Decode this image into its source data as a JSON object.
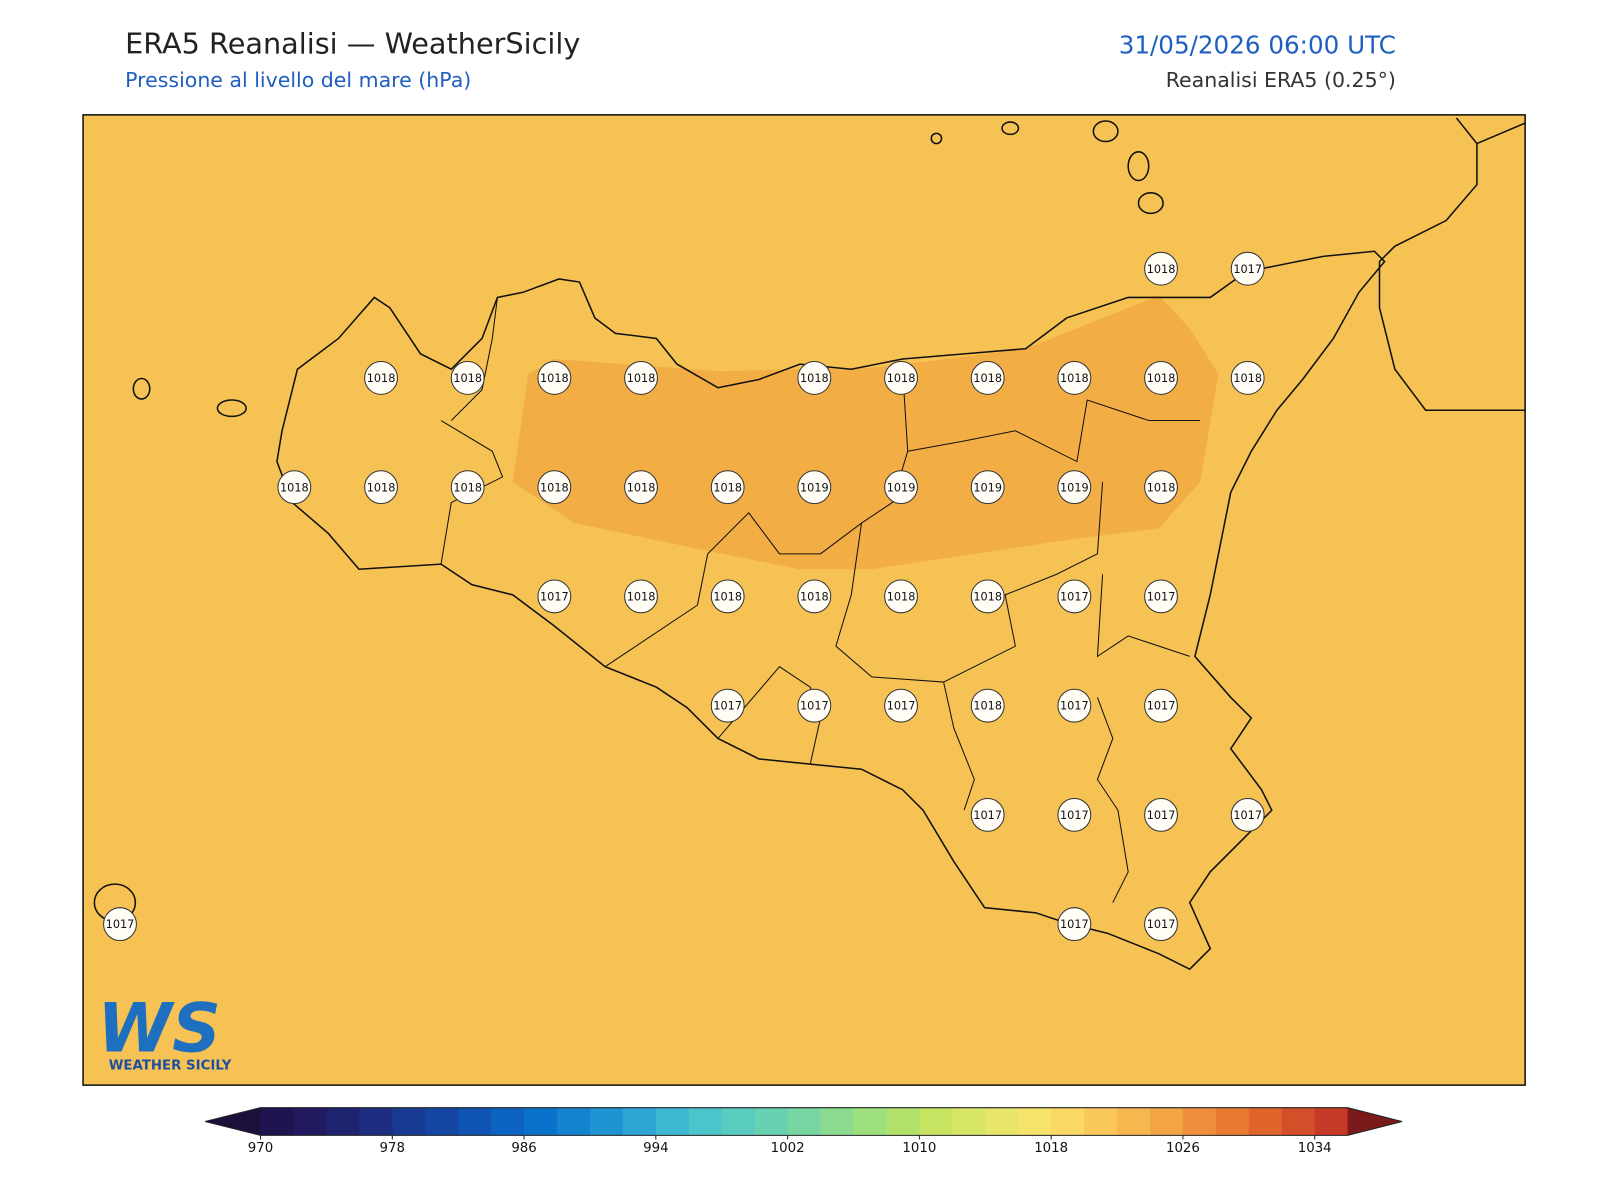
{
  "header": {
    "title": "ERA5 Reanalisi — WeatherSicily",
    "subtitle": "Pressione al livello del mare (hPa)",
    "datetime": "31/05/2026 06:00 UTC",
    "source": "Reanalisi ERA5 (0.25°)"
  },
  "map": {
    "background_color": "#f6c253",
    "high_zone_color": "#f2ae45",
    "stations": [
      1018,
      1017,
      1018,
      1018,
      1018,
      1018,
      1018,
      1018,
      1018,
      1018,
      1018,
      1018,
      1018,
      1018,
      1018,
      1018,
      1018,
      1018,
      1019,
      1019,
      1019,
      1019,
      1018,
      1017,
      1018,
      1018,
      1018,
      1018,
      1018,
      1017,
      1017,
      1017,
      1017,
      1017,
      1018,
      1017,
      1017,
      1017,
      1017,
      1017,
      1017,
      1017,
      1017,
      1017
    ]
  },
  "logo": {
    "mark": "WS",
    "text": "WEATHER SICILY"
  },
  "colorbar": {
    "lim": [
      970,
      1036
    ],
    "ticks": [
      970,
      978,
      986,
      994,
      1002,
      1010,
      1018,
      1026,
      1034
    ],
    "under_color": "#1c0f3a",
    "over_color": "#7b1a1a",
    "colors": [
      "#1f1450",
      "#221a60",
      "#1e2370",
      "#1c2d82",
      "#183a93",
      "#1546a3",
      "#1054b3",
      "#0c63c2",
      "#0b72cc",
      "#1383cf",
      "#1f94d2",
      "#2ea6d4",
      "#3db8d2",
      "#4bc5ca",
      "#5accbf",
      "#68d1b2",
      "#78d6a2",
      "#8adb90",
      "#9edf7e",
      "#b2e26c",
      "#c6e462",
      "#d8e667",
      "#e8e66a",
      "#f6e36a",
      "#fbd764",
      "#fac85a",
      "#f7b74f",
      "#f3a445",
      "#ee8f3c",
      "#e87a34",
      "#e0652d",
      "#d34f2a",
      "#c53a27"
    ]
  }
}
